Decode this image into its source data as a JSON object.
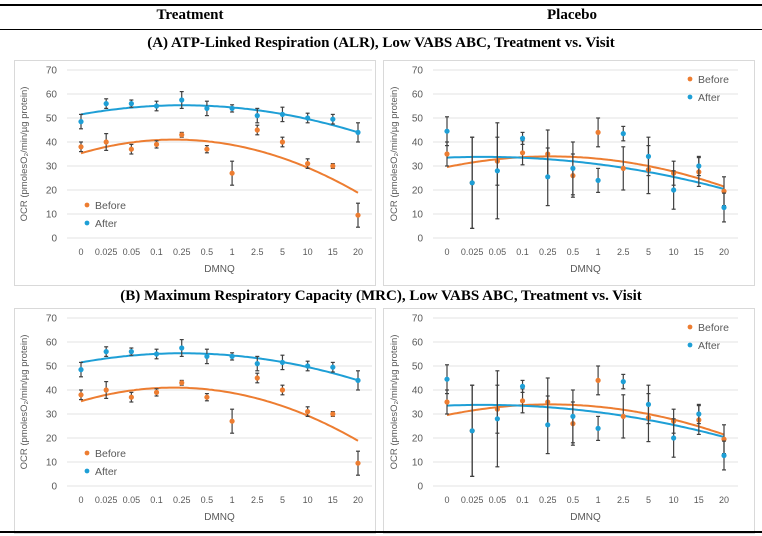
{
  "header": {
    "col1": "Treatment",
    "col2": "Placebo"
  },
  "titles": {
    "a": "(A) ATP-Linked Respiration (ALR), Low VABS ABC, Treatment vs. Visit",
    "b": "(B) Maximum Respiratory Capacity (MRC), Low VABS ABC, Treatment vs. Visit"
  },
  "colors": {
    "before": "#ED7D31",
    "after": "#1E9FD6",
    "error": "#404040",
    "grid": "#e3e3e3"
  },
  "chart_data": [
    {
      "id": "a-treatment",
      "type": "scatter",
      "xlabel": "DMNQ",
      "ylabel": "OCR (pmolesO₂/min/µg protein)",
      "categories": [
        "0",
        "0.025",
        "0.05",
        "0.1",
        "0.25",
        "0.5",
        "1",
        "2.5",
        "5",
        "10",
        "15",
        "20"
      ],
      "ylim": [
        0,
        70
      ],
      "yticks": [
        "0",
        "10",
        "20",
        "30",
        "40",
        "50",
        "60",
        "70"
      ],
      "grid": true,
      "legend": "bottom-left",
      "series": [
        {
          "name": "Before",
          "values": [
            38,
            40,
            37,
            39,
            43,
            37,
            27,
            45,
            40,
            31,
            30,
            9.5
          ],
          "errors": [
            2,
            3.5,
            2,
            1.5,
            1,
            1.5,
            5,
            2,
            2,
            2,
            1,
            5
          ],
          "trend": {
            "peak_index": 3.7,
            "peak_value": 41,
            "curvature": -0.416
          }
        },
        {
          "name": "After",
          "values": [
            48.5,
            56,
            56,
            55,
            57.5,
            54,
            54,
            51,
            51.5,
            50,
            49.5,
            44
          ],
          "errors": [
            3,
            2,
            1.5,
            2,
            3.5,
            3,
            1.5,
            3,
            3,
            2,
            2,
            4
          ],
          "trend": {
            "peak_index": 4.04,
            "peak_value": 55.3,
            "curvature": -0.233
          }
        }
      ]
    },
    {
      "id": "a-placebo",
      "type": "scatter",
      "xlabel": "DMNQ",
      "ylabel": "OCR (pmolesO₂/min/µg protein)",
      "categories": [
        "0",
        "0.025",
        "0.05",
        "0.1",
        "0.25",
        "0.5",
        "1",
        "2.5",
        "5",
        "10",
        "15",
        "20"
      ],
      "ylim": [
        0,
        70
      ],
      "yticks": [
        "0",
        "10",
        "20",
        "30",
        "40",
        "50",
        "60",
        "70"
      ],
      "grid": true,
      "legend": "top-right",
      "series": [
        {
          "name": "Before",
          "values": [
            35,
            23,
            32,
            35.5,
            35,
            26,
            44,
            29,
            28.5,
            27,
            27.5,
            19.5
          ],
          "errors": [
            5,
            19,
            10,
            5,
            10,
            9,
            6,
            9,
            10,
            5,
            6,
            6
          ],
          "trend": {
            "peak_index": 4.1,
            "peak_value": 34,
            "curvature": -0.264
          }
        },
        {
          "name": "After",
          "values": [
            44.5,
            23,
            28,
            41.5,
            25.5,
            29,
            24,
            43.5,
            34,
            20,
            30,
            12.7
          ],
          "errors": [
            6,
            19,
            20,
            2.5,
            12,
            11,
            5,
            3,
            8,
            8,
            4,
            6
          ],
          "trend": {
            "peak_index": 1.43,
            "peak_value": 33.8,
            "curvature": -0.146
          }
        }
      ]
    },
    {
      "id": "b-treatment",
      "type": "scatter",
      "xlabel": "DMNQ",
      "ylabel": "OCR (pmolesO₂/min/µg protein)",
      "categories": [
        "0",
        "0.025",
        "0.05",
        "0.1",
        "0.25",
        "0.5",
        "1",
        "2.5",
        "5",
        "10",
        "15",
        "20"
      ],
      "ylim": [
        0,
        70
      ],
      "yticks": [
        "0",
        "10",
        "20",
        "30",
        "40",
        "50",
        "60",
        "70"
      ],
      "grid": true,
      "legend": "bottom-left",
      "series": [
        {
          "name": "Before",
          "values": [
            38,
            40,
            37,
            39,
            43,
            37,
            27,
            45,
            40,
            31,
            30,
            9.5
          ],
          "errors": [
            2,
            3.5,
            2,
            1.5,
            1,
            1.5,
            5,
            2,
            2,
            2,
            1,
            5
          ],
          "trend": {
            "peak_index": 3.7,
            "peak_value": 41,
            "curvature": -0.416
          }
        },
        {
          "name": "After",
          "values": [
            48.5,
            56,
            56,
            55,
            57.5,
            54,
            54,
            51,
            51.5,
            50,
            49.5,
            44
          ],
          "errors": [
            3,
            2,
            1.5,
            2,
            3.5,
            3,
            1.5,
            3,
            3,
            2,
            2,
            4
          ],
          "trend": {
            "peak_index": 4.04,
            "peak_value": 55.3,
            "curvature": -0.233
          }
        }
      ]
    },
    {
      "id": "b-placebo",
      "type": "scatter",
      "xlabel": "DMNQ",
      "ylabel": "OCR (pmolesO₂/min/µg protein)",
      "categories": [
        "0",
        "0.025",
        "0.05",
        "0.1",
        "0.25",
        "0.5",
        "1",
        "2.5",
        "5",
        "10",
        "15",
        "20"
      ],
      "ylim": [
        0,
        70
      ],
      "yticks": [
        "0",
        "10",
        "20",
        "30",
        "40",
        "50",
        "60",
        "70"
      ],
      "grid": true,
      "legend": "top-right",
      "series": [
        {
          "name": "Before",
          "values": [
            35,
            23,
            32,
            35.5,
            35,
            26,
            44,
            29,
            28.5,
            27,
            27.5,
            19.5
          ],
          "errors": [
            5,
            19,
            10,
            5,
            10,
            9,
            6,
            9,
            10,
            5,
            6,
            6
          ],
          "trend": {
            "peak_index": 4.1,
            "peak_value": 34,
            "curvature": -0.264
          }
        },
        {
          "name": "After",
          "values": [
            44.5,
            23,
            28,
            41.5,
            25.5,
            29,
            24,
            43.5,
            34,
            20,
            30,
            12.7
          ],
          "errors": [
            6,
            19,
            20,
            2.5,
            12,
            11,
            5,
            3,
            8,
            8,
            4,
            6
          ],
          "trend": {
            "peak_index": 1.43,
            "peak_value": 33.8,
            "curvature": -0.146
          }
        }
      ]
    }
  ]
}
